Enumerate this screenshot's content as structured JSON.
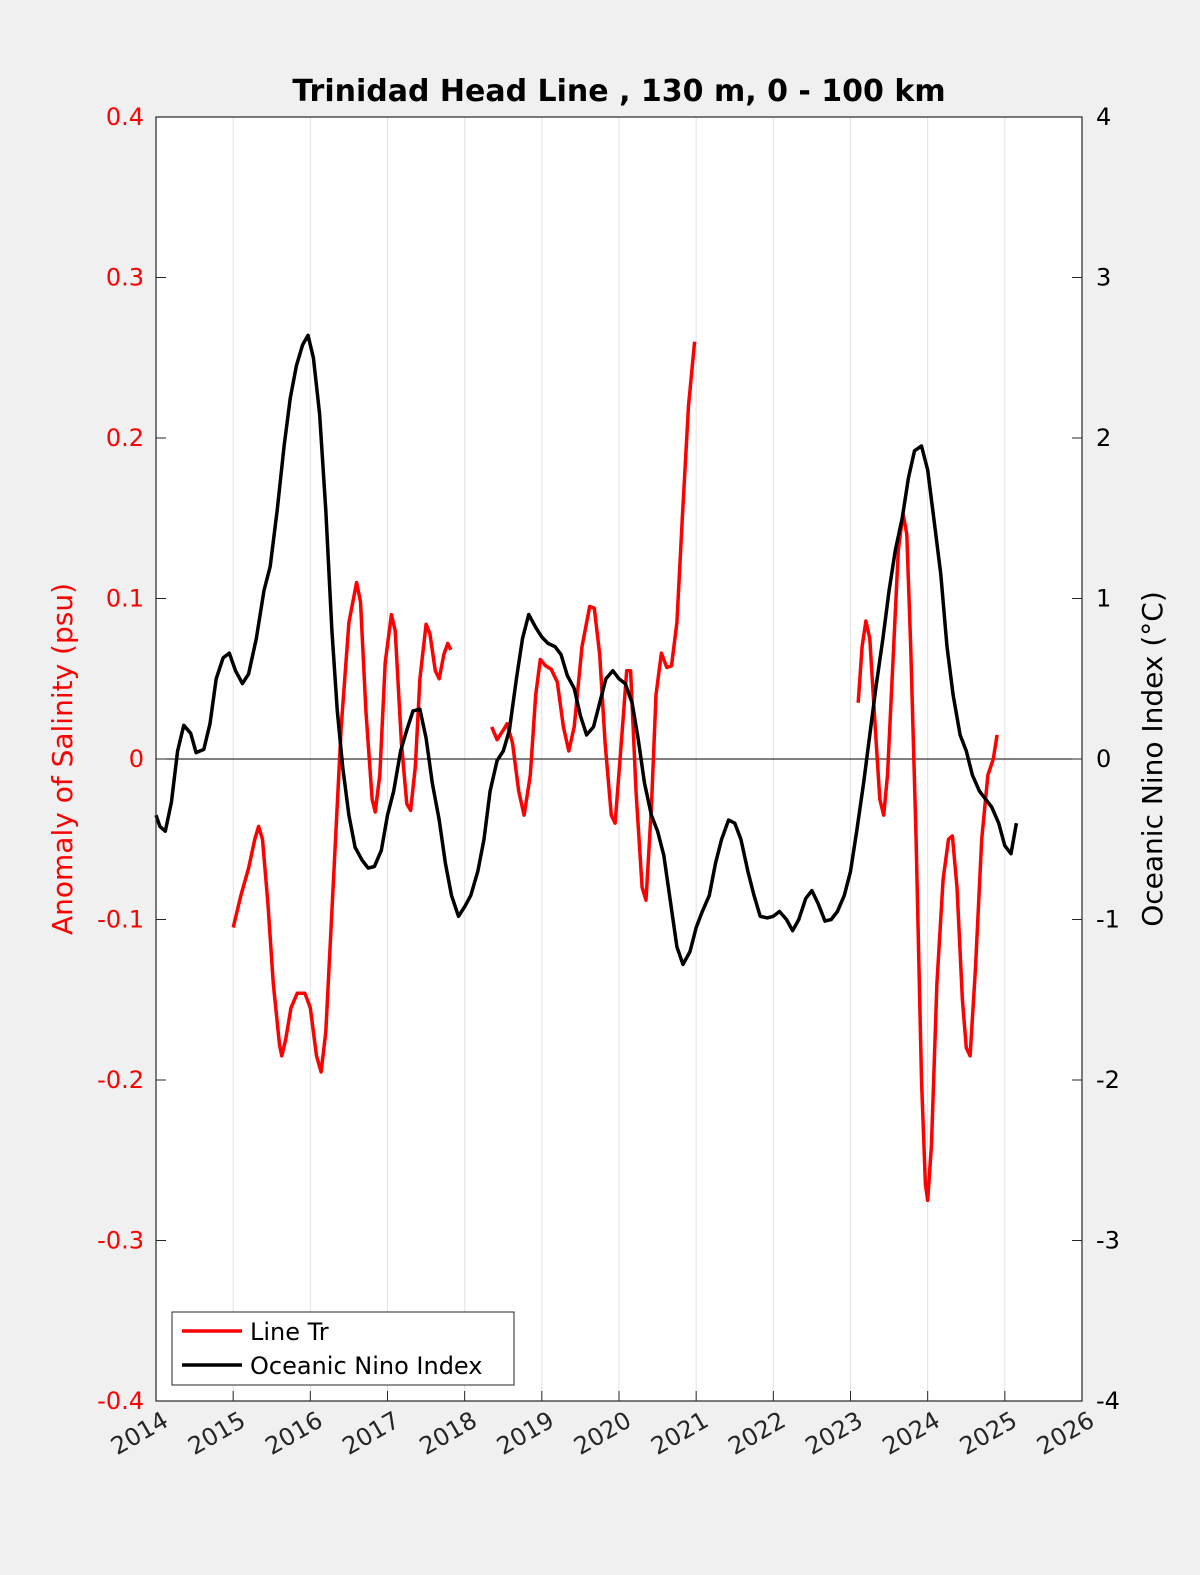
{
  "chart_data": {
    "type": "line",
    "title": "Trinidad Head Line , 130 m, 0 - 100 km",
    "ylabel_left": "Anomaly of Salinity (psu)",
    "ylabel_right": "Oceanic Nino Index (°C)",
    "xlim": [
      2014,
      2026
    ],
    "ylim_left": [
      -0.4,
      0.4
    ],
    "ylim_right": [
      -4,
      4
    ],
    "grid": "vertical",
    "legend_placement": "bottom-left",
    "x_ticks": [
      "2014",
      "2015",
      "2016",
      "2017",
      "2018",
      "2019",
      "2020",
      "2021",
      "2022",
      "2023",
      "2024",
      "2025",
      "2026"
    ],
    "y_left_ticks": [
      "-0.4",
      "-0.3",
      "-0.2",
      "-0.1",
      "0",
      "0.1",
      "0.2",
      "0.3",
      "0.4"
    ],
    "y_right_ticks": [
      "-4",
      "-3",
      "-2",
      "-1",
      "0",
      "1",
      "2",
      "3",
      "4"
    ],
    "colors": {
      "salinity": "#ff0000",
      "oni": "#000000"
    },
    "series": [
      {
        "name": "Line Tr",
        "axis": "left",
        "color": "#ff0000",
        "segments": [
          [
            [
              2015.0,
              -0.105
            ],
            [
              2015.1,
              -0.085
            ],
            [
              2015.2,
              -0.068
            ],
            [
              2015.28,
              -0.05
            ],
            [
              2015.33,
              -0.042
            ],
            [
              2015.38,
              -0.05
            ],
            [
              2015.45,
              -0.09
            ],
            [
              2015.52,
              -0.14
            ],
            [
              2015.6,
              -0.178
            ],
            [
              2015.63,
              -0.185
            ],
            [
              2015.68,
              -0.175
            ],
            [
              2015.75,
              -0.155
            ],
            [
              2015.83,
              -0.146
            ],
            [
              2015.93,
              -0.146
            ],
            [
              2016.0,
              -0.155
            ],
            [
              2016.08,
              -0.185
            ],
            [
              2016.14,
              -0.195
            ],
            [
              2016.2,
              -0.17
            ],
            [
              2016.3,
              -0.075
            ],
            [
              2016.4,
              0.02
            ],
            [
              2016.5,
              0.085
            ],
            [
              2016.6,
              0.11
            ],
            [
              2016.65,
              0.098
            ],
            [
              2016.72,
              0.03
            ],
            [
              2016.8,
              -0.025
            ],
            [
              2016.84,
              -0.033
            ],
            [
              2016.9,
              -0.01
            ],
            [
              2016.97,
              0.06
            ],
            [
              2017.05,
              0.09
            ],
            [
              2017.1,
              0.08
            ],
            [
              2017.18,
              0.01
            ],
            [
              2017.25,
              -0.028
            ],
            [
              2017.3,
              -0.032
            ],
            [
              2017.36,
              -0.005
            ],
            [
              2017.42,
              0.05
            ],
            [
              2017.5,
              0.084
            ],
            [
              2017.55,
              0.078
            ],
            [
              2017.62,
              0.055
            ],
            [
              2017.67,
              0.05
            ],
            [
              2017.73,
              0.065
            ],
            [
              2017.78,
              0.072
            ],
            [
              2017.82,
              0.068
            ]
          ],
          [
            [
              2018.35,
              0.02
            ],
            [
              2018.42,
              0.012
            ],
            [
              2018.5,
              0.018
            ],
            [
              2018.55,
              0.022
            ],
            [
              2018.62,
              0.01
            ],
            [
              2018.7,
              -0.02
            ],
            [
              2018.77,
              -0.035
            ],
            [
              2018.85,
              -0.01
            ],
            [
              2018.92,
              0.04
            ],
            [
              2018.98,
              0.062
            ],
            [
              2019.05,
              0.058
            ],
            [
              2019.12,
              0.056
            ],
            [
              2019.2,
              0.048
            ],
            [
              2019.28,
              0.02
            ],
            [
              2019.35,
              0.005
            ],
            [
              2019.42,
              0.02
            ],
            [
              2019.52,
              0.07
            ],
            [
              2019.62,
              0.095
            ],
            [
              2019.68,
              0.094
            ],
            [
              2019.75,
              0.065
            ],
            [
              2019.82,
              0.01
            ],
            [
              2019.9,
              -0.035
            ],
            [
              2019.95,
              -0.04
            ],
            [
              2020.03,
              0.01
            ],
            [
              2020.1,
              0.055
            ],
            [
              2020.15,
              0.055
            ],
            [
              2020.22,
              -0.02
            ],
            [
              2020.3,
              -0.08
            ],
            [
              2020.35,
              -0.088
            ],
            [
              2020.42,
              -0.03
            ],
            [
              2020.48,
              0.04
            ],
            [
              2020.55,
              0.066
            ],
            [
              2020.62,
              0.057
            ],
            [
              2020.68,
              0.058
            ],
            [
              2020.75,
              0.085
            ],
            [
              2020.82,
              0.15
            ],
            [
              2020.9,
              0.22
            ],
            [
              2020.98,
              0.26
            ]
          ],
          [
            [
              2023.1,
              0.035
            ],
            [
              2023.15,
              0.07
            ],
            [
              2023.2,
              0.086
            ],
            [
              2023.25,
              0.075
            ],
            [
              2023.32,
              0.02
            ],
            [
              2023.38,
              -0.025
            ],
            [
              2023.43,
              -0.035
            ],
            [
              2023.48,
              -0.01
            ],
            [
              2023.55,
              0.06
            ],
            [
              2023.62,
              0.13
            ],
            [
              2023.68,
              0.153
            ],
            [
              2023.73,
              0.14
            ],
            [
              2023.78,
              0.07
            ],
            [
              2023.85,
              -0.05
            ],
            [
              2023.92,
              -0.2
            ],
            [
              2023.97,
              -0.265
            ],
            [
              2024.0,
              -0.275
            ],
            [
              2024.05,
              -0.24
            ],
            [
              2024.12,
              -0.14
            ],
            [
              2024.2,
              -0.075
            ],
            [
              2024.27,
              -0.05
            ],
            [
              2024.32,
              -0.048
            ],
            [
              2024.38,
              -0.08
            ],
            [
              2024.45,
              -0.15
            ],
            [
              2024.5,
              -0.18
            ],
            [
              2024.55,
              -0.185
            ],
            [
              2024.62,
              -0.13
            ],
            [
              2024.7,
              -0.05
            ],
            [
              2024.78,
              -0.01
            ],
            [
              2024.85,
              0.0
            ],
            [
              2024.9,
              0.015
            ]
          ]
        ]
      },
      {
        "name": "Oceanic Nino Index",
        "axis": "right",
        "color": "#000000",
        "segments": [
          [
            [
              2014.0,
              -0.35
            ],
            [
              2014.05,
              -0.42
            ],
            [
              2014.12,
              -0.45
            ],
            [
              2014.2,
              -0.27
            ],
            [
              2014.28,
              0.05
            ],
            [
              2014.36,
              0.21
            ],
            [
              2014.45,
              0.16
            ],
            [
              2014.52,
              0.04
            ],
            [
              2014.62,
              0.06
            ],
            [
              2014.7,
              0.22
            ],
            [
              2014.78,
              0.5
            ],
            [
              2014.87,
              0.63
            ],
            [
              2014.95,
              0.66
            ],
            [
              2015.03,
              0.55
            ],
            [
              2015.12,
              0.47
            ],
            [
              2015.2,
              0.53
            ],
            [
              2015.3,
              0.75
            ],
            [
              2015.4,
              1.05
            ],
            [
              2015.48,
              1.2
            ],
            [
              2015.57,
              1.55
            ],
            [
              2015.66,
              1.95
            ],
            [
              2015.74,
              2.25
            ],
            [
              2015.82,
              2.45
            ],
            [
              2015.9,
              2.58
            ],
            [
              2015.97,
              2.64
            ],
            [
              2016.04,
              2.5
            ],
            [
              2016.12,
              2.15
            ],
            [
              2016.2,
              1.55
            ],
            [
              2016.28,
              0.8
            ],
            [
              2016.35,
              0.3
            ],
            [
              2016.42,
              -0.05
            ],
            [
              2016.5,
              -0.35
            ],
            [
              2016.58,
              -0.55
            ],
            [
              2016.67,
              -0.63
            ],
            [
              2016.75,
              -0.68
            ],
            [
              2016.83,
              -0.67
            ],
            [
              2016.92,
              -0.57
            ],
            [
              2017.0,
              -0.35
            ],
            [
              2017.08,
              -0.2
            ],
            [
              2017.17,
              0.05
            ],
            [
              2017.25,
              0.18
            ],
            [
              2017.33,
              0.3
            ],
            [
              2017.42,
              0.31
            ],
            [
              2017.5,
              0.13
            ],
            [
              2017.58,
              -0.15
            ],
            [
              2017.67,
              -0.38
            ],
            [
              2017.75,
              -0.65
            ],
            [
              2017.83,
              -0.85
            ],
            [
              2017.92,
              -0.98
            ],
            [
              2018.0,
              -0.92
            ],
            [
              2018.08,
              -0.85
            ],
            [
              2018.17,
              -0.7
            ],
            [
              2018.25,
              -0.5
            ],
            [
              2018.33,
              -0.2
            ],
            [
              2018.42,
              -0.01
            ],
            [
              2018.5,
              0.05
            ],
            [
              2018.58,
              0.18
            ],
            [
              2018.67,
              0.5
            ],
            [
              2018.75,
              0.75
            ],
            [
              2018.83,
              0.9
            ],
            [
              2018.92,
              0.82
            ],
            [
              2019.0,
              0.76
            ],
            [
              2019.08,
              0.72
            ],
            [
              2019.17,
              0.7
            ],
            [
              2019.25,
              0.65
            ],
            [
              2019.33,
              0.52
            ],
            [
              2019.42,
              0.44
            ],
            [
              2019.5,
              0.27
            ],
            [
              2019.58,
              0.15
            ],
            [
              2019.67,
              0.2
            ],
            [
              2019.75,
              0.35
            ],
            [
              2019.83,
              0.5
            ],
            [
              2019.92,
              0.55
            ],
            [
              2020.0,
              0.5
            ],
            [
              2020.08,
              0.47
            ],
            [
              2020.17,
              0.35
            ],
            [
              2020.25,
              0.12
            ],
            [
              2020.33,
              -0.15
            ],
            [
              2020.42,
              -0.35
            ],
            [
              2020.5,
              -0.45
            ],
            [
              2020.58,
              -0.6
            ],
            [
              2020.67,
              -0.9
            ],
            [
              2020.75,
              -1.17
            ],
            [
              2020.83,
              -1.28
            ],
            [
              2020.92,
              -1.2
            ],
            [
              2021.0,
              -1.05
            ],
            [
              2021.08,
              -0.95
            ],
            [
              2021.17,
              -0.85
            ],
            [
              2021.25,
              -0.65
            ],
            [
              2021.33,
              -0.5
            ],
            [
              2021.42,
              -0.38
            ],
            [
              2021.5,
              -0.4
            ],
            [
              2021.58,
              -0.5
            ],
            [
              2021.67,
              -0.7
            ],
            [
              2021.75,
              -0.85
            ],
            [
              2021.83,
              -0.98
            ],
            [
              2021.92,
              -0.99
            ],
            [
              2022.0,
              -0.98
            ],
            [
              2022.08,
              -0.95
            ],
            [
              2022.17,
              -1.0
            ],
            [
              2022.25,
              -1.07
            ],
            [
              2022.33,
              -1.0
            ],
            [
              2022.42,
              -0.87
            ],
            [
              2022.5,
              -0.82
            ],
            [
              2022.58,
              -0.9
            ],
            [
              2022.67,
              -1.01
            ],
            [
              2022.75,
              -1.0
            ],
            [
              2022.83,
              -0.95
            ],
            [
              2022.92,
              -0.85
            ],
            [
              2023.0,
              -0.7
            ],
            [
              2023.08,
              -0.45
            ],
            [
              2023.17,
              -0.15
            ],
            [
              2023.25,
              0.15
            ],
            [
              2023.33,
              0.45
            ],
            [
              2023.42,
              0.75
            ],
            [
              2023.5,
              1.05
            ],
            [
              2023.58,
              1.3
            ],
            [
              2023.67,
              1.5
            ],
            [
              2023.75,
              1.75
            ],
            [
              2023.83,
              1.92
            ],
            [
              2023.92,
              1.95
            ],
            [
              2024.0,
              1.8
            ],
            [
              2024.08,
              1.5
            ],
            [
              2024.17,
              1.15
            ],
            [
              2024.25,
              0.7
            ],
            [
              2024.33,
              0.4
            ],
            [
              2024.42,
              0.15
            ],
            [
              2024.5,
              0.05
            ],
            [
              2024.58,
              -0.1
            ],
            [
              2024.67,
              -0.2
            ],
            [
              2024.75,
              -0.25
            ],
            [
              2024.83,
              -0.3
            ],
            [
              2024.92,
              -0.4
            ],
            [
              2025.0,
              -0.54
            ],
            [
              2025.08,
              -0.59
            ],
            [
              2025.15,
              -0.4
            ]
          ]
        ]
      }
    ]
  }
}
